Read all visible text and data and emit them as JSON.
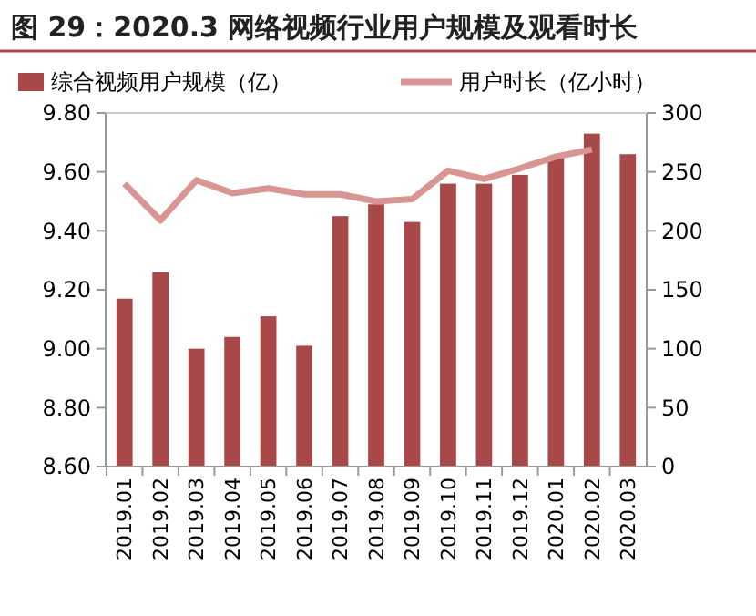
{
  "chart_data": {
    "type": "bar",
    "title": "图 29：2020.3 网络视频行业用户规模及观看时长",
    "categories": [
      "2019.01",
      "2019.02",
      "2019.03",
      "2019.04",
      "2019.05",
      "2019.06",
      "2019.07",
      "2019.08",
      "2019.09",
      "2019.10",
      "2019.11",
      "2019.12",
      "2020.01",
      "2020.02",
      "2020.03"
    ],
    "series": [
      {
        "name": "综合视频用户规模（亿）",
        "color": "#a94848",
        "values": [
          9.17,
          9.26,
          9.0,
          9.04,
          9.11,
          9.01,
          9.45,
          9.49,
          9.43,
          9.56,
          9.56,
          9.59,
          9.65,
          9.73,
          9.66
        ]
      },
      {
        "name": "用户时长（亿小时）",
        "type": "line",
        "axis": "y2",
        "color": "#d99594",
        "values": [
          240,
          209,
          243,
          232,
          236,
          231,
          231,
          225,
          227,
          251,
          244,
          253,
          263,
          269,
          null
        ]
      }
    ],
    "ylim": [
      8.6,
      9.8
    ],
    "yticks": [
      {
        "value": 8.6,
        "label": "8.60"
      },
      {
        "value": 8.8,
        "label": "8.80"
      },
      {
        "value": 9.0,
        "label": "9.00"
      },
      {
        "value": 9.2,
        "label": "9.20"
      },
      {
        "value": 9.4,
        "label": "9.40"
      },
      {
        "value": 9.6,
        "label": "9.60"
      },
      {
        "value": 9.8,
        "label": "9.80"
      }
    ],
    "y2lim": [
      0,
      300
    ],
    "y2ticks": [
      0,
      50,
      100,
      150,
      200,
      250,
      300
    ],
    "legend": "top",
    "grid": false,
    "marker": "none",
    "line_style": "solid"
  }
}
